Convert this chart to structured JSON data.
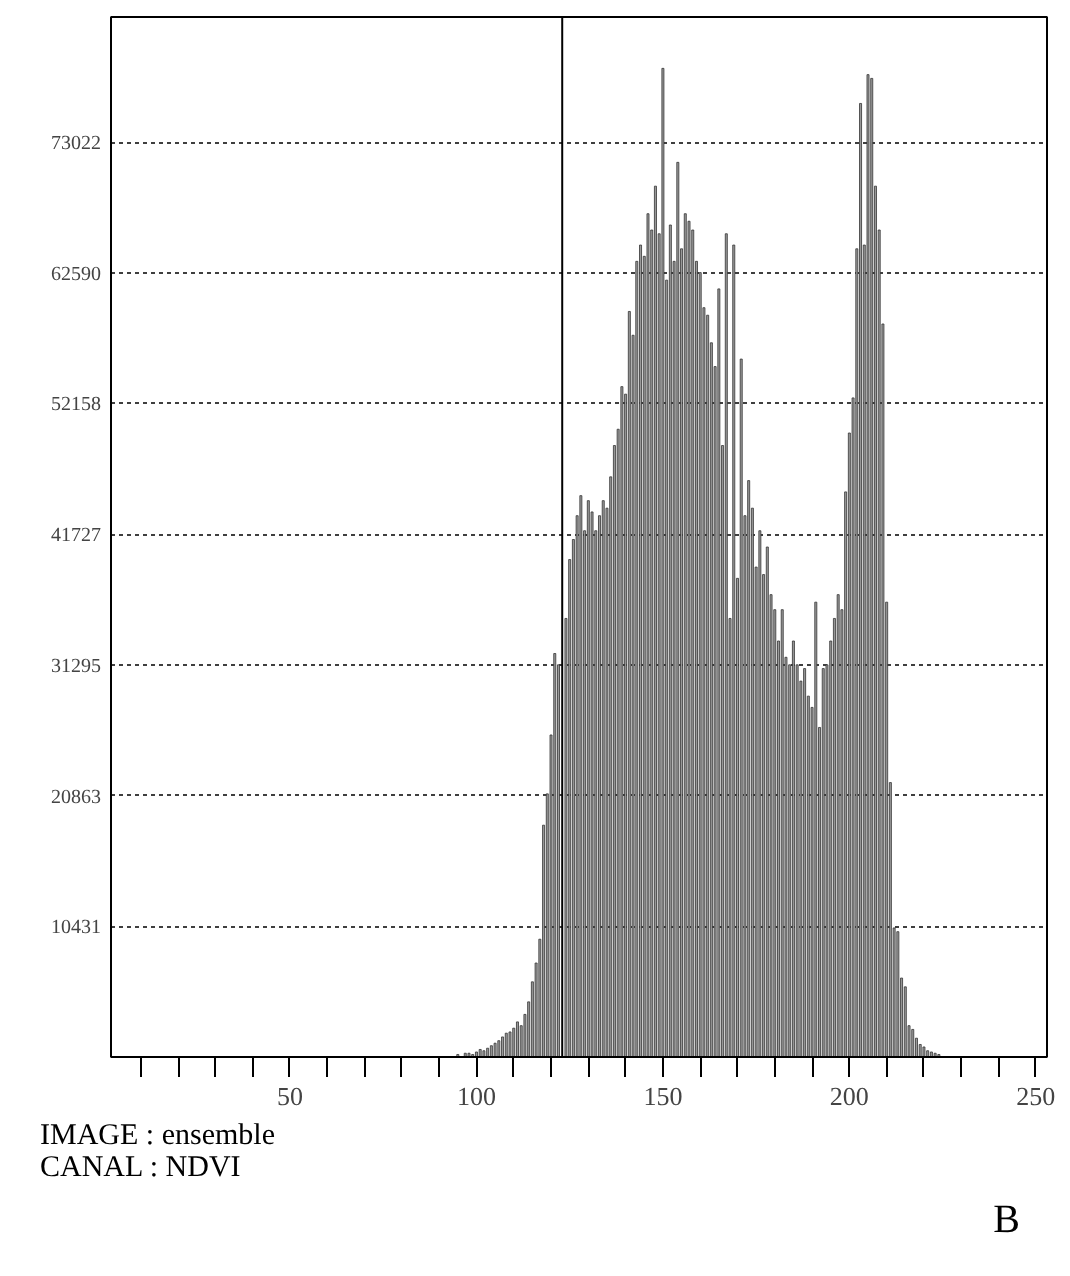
{
  "chart_data": {
    "type": "bar",
    "x": [
      95,
      96,
      97,
      98,
      99,
      100,
      101,
      102,
      103,
      104,
      105,
      106,
      107,
      108,
      109,
      110,
      111,
      112,
      113,
      114,
      115,
      116,
      117,
      118,
      119,
      120,
      121,
      122,
      123,
      124,
      125,
      126,
      127,
      128,
      129,
      130,
      131,
      132,
      133,
      134,
      135,
      136,
      137,
      138,
      139,
      140,
      141,
      142,
      143,
      144,
      145,
      146,
      147,
      148,
      149,
      150,
      151,
      152,
      153,
      154,
      155,
      156,
      157,
      158,
      159,
      160,
      161,
      162,
      163,
      164,
      165,
      166,
      167,
      168,
      169,
      170,
      171,
      172,
      173,
      174,
      175,
      176,
      177,
      178,
      179,
      180,
      181,
      182,
      183,
      184,
      185,
      186,
      187,
      188,
      189,
      190,
      191,
      192,
      193,
      194,
      195,
      196,
      197,
      198,
      199,
      200,
      201,
      202,
      203,
      204,
      205,
      206,
      207,
      208,
      209,
      210,
      211,
      212,
      213,
      214,
      215,
      216,
      217,
      218,
      219,
      220,
      221,
      222,
      223,
      224
    ],
    "values": [
      200,
      null,
      300,
      300,
      200,
      400,
      600,
      500,
      700,
      900,
      1100,
      1300,
      1600,
      1900,
      2000,
      2300,
      2800,
      2500,
      3400,
      4400,
      6000,
      7500,
      9400,
      18500,
      21000,
      25700,
      32200,
      31300,
      null,
      35000,
      39700,
      41300,
      43200,
      44800,
      42000,
      44400,
      43500,
      42000,
      43200,
      44400,
      43800,
      46300,
      48800,
      50100,
      53500,
      52900,
      59500,
      57600,
      63500,
      64800,
      63900,
      67300,
      66000,
      69500,
      65700,
      78900,
      62000,
      66400,
      63500,
      71400,
      64500,
      67300,
      66700,
      66000,
      63500,
      62600,
      59800,
      59200,
      57000,
      55100,
      61300,
      48800,
      65700,
      35000,
      64800,
      38200,
      55700,
      43200,
      46000,
      43800,
      39100,
      42000,
      38500,
      40700,
      36900,
      35700,
      33200,
      35700,
      31900,
      31300,
      33200,
      31300,
      30000,
      31000,
      28800,
      27900,
      36300,
      26300,
      31000,
      31300,
      33200,
      35000,
      36900,
      35700,
      45100,
      49800,
      52600,
      64500,
      76100,
      64800,
      78400,
      78100,
      69500,
      66000,
      58500,
      36300,
      21900,
      10300,
      10000,
      6300,
      5600,
      2500,
      2200,
      1500,
      1000,
      800,
      500,
      400,
      300,
      200
    ],
    "color": "#9a9a9a",
    "xlim": [
      2,
      253
    ],
    "ylim": [
      0,
      83000
    ],
    "xticks": [
      {
        "value": 10,
        "label": null
      },
      {
        "value": 20,
        "label": null
      },
      {
        "value": 30,
        "label": null
      },
      {
        "value": 40,
        "label": null
      },
      50,
      {
        "value": 60,
        "label": null
      },
      {
        "value": 70,
        "label": null
      },
      {
        "value": 80,
        "label": null
      },
      {
        "value": 90,
        "label": null
      },
      100,
      {
        "value": 110,
        "label": null
      },
      {
        "value": 120,
        "label": null
      },
      {
        "value": 130,
        "label": null
      },
      {
        "value": 140,
        "label": null
      },
      150,
      {
        "value": 160,
        "label": null
      },
      {
        "value": 170,
        "label": null
      },
      {
        "value": 180,
        "label": null
      },
      {
        "value": 190,
        "label": null
      },
      200,
      {
        "value": 210,
        "label": null
      },
      {
        "value": 220,
        "label": null
      },
      {
        "value": 230,
        "label": null
      },
      {
        "value": 240,
        "label": null
      },
      250
    ],
    "yticks": [
      10431,
      20863,
      31295,
      41727,
      52158,
      62590,
      73022
    ],
    "grid": "y",
    "ref_lines": [
      {
        "axis": "x",
        "value": 123,
        "color": "#000000"
      }
    ],
    "annotations": [
      "IMAGE : ensemble",
      "CANAL : NDVI",
      "B"
    ]
  }
}
